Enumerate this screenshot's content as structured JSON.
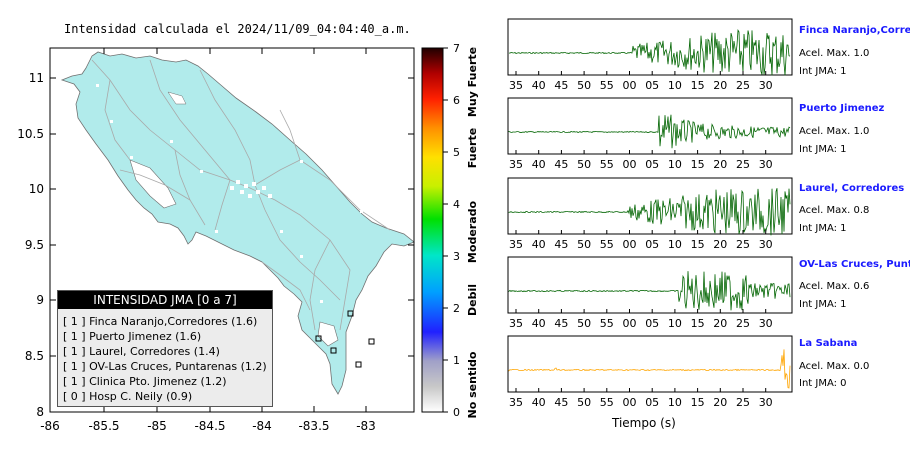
{
  "map": {
    "title": "Intensidad calculada el 2024/11/09_04:04:40_a.m.",
    "lat_ticks": [
      "11",
      "10.5",
      "10",
      "9.5",
      "9",
      "8.5",
      "8"
    ],
    "lon_ticks": [
      "-86",
      "-85.5",
      "-85",
      "-84.5",
      "-84",
      "-83.5",
      "-83"
    ],
    "land_color": "#b1ebeb",
    "road_color": "#a9a9a9"
  },
  "colorbar": {
    "ticks": [
      "0",
      "1",
      "2",
      "3",
      "4",
      "5",
      "6",
      "7"
    ],
    "categories": [
      "No sentido",
      "Debil",
      "Moderado",
      "Fuerte",
      "Muy Fuerte"
    ]
  },
  "legend": {
    "header": "INTENSIDAD JMA [0 a 7]",
    "rows": [
      "[ 1 ]  Finca Naranjo,Corredores (1.6)",
      "[ 1 ]  Puerto Jimenez (1.6)",
      "[ 1 ]  Laurel, Corredores (1.4)",
      "[ 1 ]  OV-Las Cruces, Puntarenas (1.2)",
      "[ 1 ]  Clinica Pto. Jimenez (1.2)",
      "[ 0 ]  Hosp C. Neily (0.9)"
    ]
  },
  "seismograms": {
    "time_ticks": [
      "35",
      "40",
      "45",
      "50",
      "55",
      "00",
      "05",
      "10",
      "15",
      "20",
      "25",
      "30"
    ],
    "xlabel": "Tiempo (s)",
    "stations": [
      {
        "name": "Finca Naranjo,Corredor",
        "acel": "Acel. Max. 1.0",
        "jma": "Int JMA: 1",
        "color": "#006400",
        "onset": 0.44,
        "amp": 1.0
      },
      {
        "name": "Puerto Jimenez",
        "acel": "Acel. Max. 1.0",
        "jma": "Int JMA: 1",
        "color": "#006400",
        "onset": 0.53,
        "amp": 0.9
      },
      {
        "name": "Laurel, Corredores",
        "acel": "Acel. Max. 0.8",
        "jma": "Int JMA: 1",
        "color": "#006400",
        "onset": 0.42,
        "amp": 1.0
      },
      {
        "name": "OV-Las Cruces, Puntar",
        "acel": "Acel. Max. 0.6",
        "jma": "Int JMA: 1",
        "color": "#006400",
        "onset": 0.6,
        "amp": 1.0
      },
      {
        "name": "La Sabana",
        "acel": "Acel. Max. 0.0",
        "jma": "Int JMA: 0",
        "color": "#ffa500",
        "onset": 0.96,
        "amp": 1.0
      }
    ]
  }
}
